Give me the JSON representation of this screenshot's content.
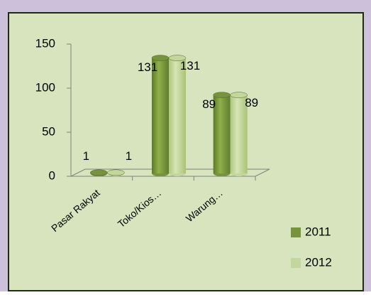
{
  "chart_data": {
    "type": "bar",
    "categories": [
      "Pasar Rakyat",
      "Toko/Kios…",
      "Warung…"
    ],
    "series": [
      {
        "name": "2011",
        "color": "#77933c",
        "values": [
          1,
          131,
          89
        ]
      },
      {
        "name": "2012",
        "color": "#c3d69b",
        "values": [
          1,
          131,
          89
        ]
      }
    ],
    "ylim": [
      0,
      150
    ],
    "yticks": [
      0,
      50,
      100,
      150
    ],
    "legend": "right"
  }
}
